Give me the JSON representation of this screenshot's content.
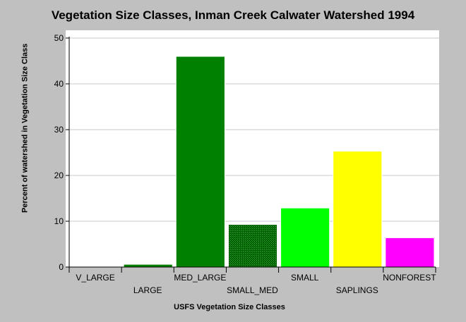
{
  "chart_data": {
    "type": "bar",
    "title": "Vegetation Size Classes, Inman Creek Calwater Watershed 1994",
    "xlabel": "USFS Vegetation Size Classes",
    "ylabel": "Percent of watershed in Vegetation Size Class",
    "ylim": [
      0,
      50
    ],
    "yticks": [
      0,
      10,
      20,
      30,
      40,
      50
    ],
    "grid": true,
    "legend": "none",
    "categories": [
      "V_LARGE",
      "LARGE",
      "MED_LARGE",
      "SMALL_MED",
      "SMALL",
      "SAPLINGS",
      "NONFOREST"
    ],
    "values": [
      0,
      0.6,
      46,
      9.3,
      12.9,
      25.3,
      6.4
    ],
    "colors": [
      "#008000",
      "#008000",
      "#008000",
      "#008000",
      "#00ff00",
      "#ffff00",
      "#ff00ff"
    ],
    "patterns": [
      "solid",
      "solid",
      "solid",
      "crosshatch",
      "solid",
      "solid",
      "solid"
    ]
  }
}
